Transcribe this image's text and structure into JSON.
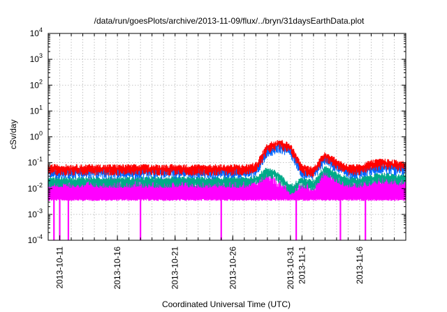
{
  "chart_data": {
    "type": "line",
    "title": "/data/run/goesPlots/archive/2013-11-09/flux/../bryn/31daysEarthData.plot",
    "xlabel": "Coordinated Universal Time (UTC)",
    "ylabel": "cSv/day",
    "yscale": "log",
    "ylim": [
      0.0001,
      10000
    ],
    "xlim": [
      "2013-10-10",
      "2013-11-10"
    ],
    "grid": true,
    "legend": "none",
    "y_ticks": [
      {
        "value": 0.0001,
        "base": "10",
        "exp": "-4"
      },
      {
        "value": 0.001,
        "base": "10",
        "exp": "-3"
      },
      {
        "value": 0.01,
        "base": "10",
        "exp": "-2"
      },
      {
        "value": 0.1,
        "base": "10",
        "exp": "-1"
      },
      {
        "value": 1,
        "base": "10",
        "exp": "0"
      },
      {
        "value": 10,
        "base": "10",
        "exp": "1"
      },
      {
        "value": 100,
        "base": "10",
        "exp": "2"
      },
      {
        "value": 1000,
        "base": "10",
        "exp": "3"
      },
      {
        "value": 10000,
        "base": "10",
        "exp": "4"
      }
    ],
    "x_ticks": [
      {
        "date": "2013-10-11",
        "label": "2013-10-11"
      },
      {
        "date": "2013-10-16",
        "label": "2013-10-16"
      },
      {
        "date": "2013-10-21",
        "label": "2013-10-21"
      },
      {
        "date": "2013-10-26",
        "label": "2013-10-26"
      },
      {
        "date": "2013-10-31",
        "label": "2013-10-31"
      },
      {
        "date": "2013-11-01",
        "label": "2013-11-1"
      },
      {
        "date": "2013-11-06",
        "label": "2013-11-6"
      }
    ],
    "series": [
      {
        "color": "#ff0000",
        "points": [
          [
            "2013-10-10",
            0.06
          ],
          [
            "2013-10-12",
            0.06
          ],
          [
            "2013-10-14",
            0.06
          ],
          [
            "2013-10-16",
            0.06
          ],
          [
            "2013-10-18",
            0.06
          ],
          [
            "2013-10-20",
            0.06
          ],
          [
            "2013-10-22",
            0.06
          ],
          [
            "2013-10-24",
            0.06
          ],
          [
            "2013-10-26",
            0.06
          ],
          [
            "2013-10-27",
            0.06
          ],
          [
            "2013-10-28",
            0.07
          ],
          [
            "2013-10-29",
            0.4
          ],
          [
            "2013-10-30",
            0.6
          ],
          [
            "2013-10-31",
            0.4
          ],
          [
            "2013-11-01",
            0.06
          ],
          [
            "2013-11-02",
            0.05
          ],
          [
            "2013-11-03",
            0.2
          ],
          [
            "2013-11-04",
            0.1
          ],
          [
            "2013-11-05",
            0.06
          ],
          [
            "2013-11-06",
            0.06
          ],
          [
            "2013-11-07",
            0.09
          ],
          [
            "2013-11-08",
            0.1
          ],
          [
            "2013-11-09",
            0.09
          ],
          [
            "2013-11-10",
            0.08
          ]
        ]
      },
      {
        "color": "#0066ff",
        "points": [
          [
            "2013-10-10",
            0.045
          ],
          [
            "2013-10-12",
            0.045
          ],
          [
            "2013-10-14",
            0.045
          ],
          [
            "2013-10-16",
            0.045
          ],
          [
            "2013-10-18",
            0.045
          ],
          [
            "2013-10-20",
            0.045
          ],
          [
            "2013-10-22",
            0.045
          ],
          [
            "2013-10-24",
            0.045
          ],
          [
            "2013-10-26",
            0.045
          ],
          [
            "2013-10-27",
            0.045
          ],
          [
            "2013-10-28",
            0.05
          ],
          [
            "2013-10-29",
            0.3
          ],
          [
            "2013-10-30",
            0.45
          ],
          [
            "2013-10-31",
            0.3
          ],
          [
            "2013-11-01",
            0.045
          ],
          [
            "2013-11-02",
            0.04
          ],
          [
            "2013-11-03",
            0.15
          ],
          [
            "2013-11-04",
            0.08
          ],
          [
            "2013-11-05",
            0.045
          ],
          [
            "2013-11-06",
            0.045
          ],
          [
            "2013-11-07",
            0.06
          ],
          [
            "2013-11-08",
            0.07
          ],
          [
            "2013-11-09",
            0.06
          ],
          [
            "2013-11-10",
            0.06
          ]
        ]
      },
      {
        "color": "#00aa88",
        "points": [
          [
            "2013-10-10",
            0.02
          ],
          [
            "2013-10-12",
            0.02
          ],
          [
            "2013-10-14",
            0.02
          ],
          [
            "2013-10-16",
            0.02
          ],
          [
            "2013-10-18",
            0.02
          ],
          [
            "2013-10-20",
            0.02
          ],
          [
            "2013-10-22",
            0.02
          ],
          [
            "2013-10-24",
            0.02
          ],
          [
            "2013-10-26",
            0.02
          ],
          [
            "2013-10-27",
            0.02
          ],
          [
            "2013-10-28",
            0.022
          ],
          [
            "2013-10-29",
            0.05
          ],
          [
            "2013-10-30",
            0.03
          ],
          [
            "2013-10-31",
            0.01
          ],
          [
            "2013-11-01",
            0.02
          ],
          [
            "2013-11-02",
            0.015
          ],
          [
            "2013-11-03",
            0.06
          ],
          [
            "2013-11-04",
            0.03
          ],
          [
            "2013-11-05",
            0.02
          ],
          [
            "2013-11-06",
            0.02
          ],
          [
            "2013-11-07",
            0.025
          ],
          [
            "2013-11-08",
            0.03
          ],
          [
            "2013-11-09",
            0.025
          ],
          [
            "2013-11-10",
            0.025
          ]
        ]
      },
      {
        "color": "#ff00ff",
        "points": [
          [
            "2013-10-10",
            0.012
          ],
          [
            "2013-10-12",
            0.012
          ],
          [
            "2013-10-14",
            0.012
          ],
          [
            "2013-10-16",
            0.012
          ],
          [
            "2013-10-18",
            0.012
          ],
          [
            "2013-10-20",
            0.012
          ],
          [
            "2013-10-22",
            0.012
          ],
          [
            "2013-10-24",
            0.012
          ],
          [
            "2013-10-26",
            0.012
          ],
          [
            "2013-10-27",
            0.012
          ],
          [
            "2013-10-28",
            0.012
          ],
          [
            "2013-10-29",
            0.02
          ],
          [
            "2013-10-30",
            0.01
          ],
          [
            "2013-10-31",
            0.006
          ],
          [
            "2013-11-01",
            0.01
          ],
          [
            "2013-11-02",
            0.006
          ],
          [
            "2013-11-03",
            0.03
          ],
          [
            "2013-11-04",
            0.015
          ],
          [
            "2013-11-05",
            0.012
          ],
          [
            "2013-11-06",
            0.012
          ],
          [
            "2013-11-07",
            0.014
          ],
          [
            "2013-11-08",
            0.015
          ],
          [
            "2013-11-09",
            0.014
          ],
          [
            "2013-11-10",
            0.014
          ]
        ]
      }
    ],
    "baseline_series": {
      "color": "#ff00ff",
      "value": 0.004,
      "dropouts": [
        "2013-10-10T12:00",
        "2013-10-11T00:00",
        "2013-10-11T18:00",
        "2013-10-18T00:00",
        "2013-10-25T00:00",
        "2013-10-31T12:00",
        "2013-11-04T08:00",
        "2013-11-06T12:00"
      ]
    }
  }
}
